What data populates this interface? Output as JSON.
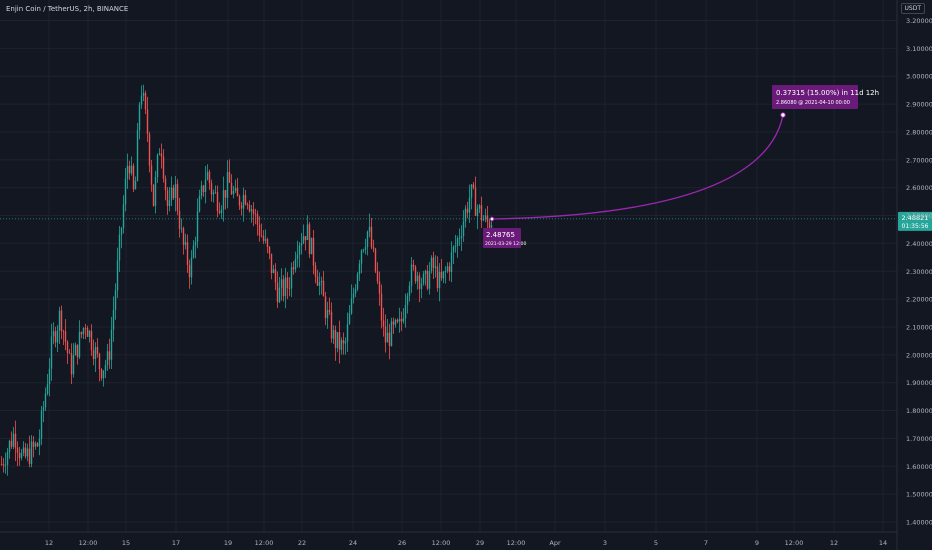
{
  "header": {
    "symbol_title": "Enjin Coin / TetherUS, 2h, BINANCE",
    "currency": "USDT"
  },
  "colors": {
    "background": "#131722",
    "grid": "#1e222d",
    "up": "#26a69a",
    "down": "#ef5350",
    "projection": "#9c27b0",
    "current_line": "#26a69a"
  },
  "chart_data": {
    "type": "candlestick",
    "ylim": [
      1.35,
      3.25
    ],
    "y_ticks": [
      "3.20000",
      "3.10000",
      "3.00000",
      "2.90000",
      "2.80000",
      "2.70000",
      "2.60000",
      "2.50000",
      "2.40000",
      "2.30000",
      "2.20000",
      "2.10000",
      "2.00000",
      "1.90000",
      "1.80000",
      "1.70000",
      "1.60000",
      "1.50000",
      "1.40000"
    ],
    "x_ticks": [
      "12",
      "12:00",
      "15",
      "17",
      "19",
      "12:00",
      "22",
      "24",
      "26",
      "12:00",
      "29",
      "12:00",
      "Apr",
      "3",
      "5",
      "7",
      "9",
      "12:00",
      "12",
      "14"
    ],
    "current_price": {
      "value": 2.48821,
      "label": "2.48821",
      "countdown": "01:35:56"
    },
    "projection": {
      "line1": "0.37315 (15.00%) in 11d 12h",
      "line2": "2.86080 @ 2021-04-10  00:00",
      "start_value": 2.48765,
      "start_label": "2.48765",
      "start_date": "2021-03-29 12:00",
      "end_value": 2.8608
    },
    "price_path": [
      [
        0,
        1.6
      ],
      [
        14,
        1.72
      ],
      [
        22,
        1.62
      ],
      [
        38,
        1.68
      ],
      [
        52,
        2.05
      ],
      [
        60,
        2.15
      ],
      [
        70,
        1.95
      ],
      [
        85,
        2.12
      ],
      [
        100,
        1.95
      ],
      [
        108,
        1.98
      ],
      [
        118,
        2.35
      ],
      [
        128,
        2.72
      ],
      [
        134,
        2.55
      ],
      [
        140,
        2.98
      ],
      [
        147,
        2.8
      ],
      [
        153,
        2.55
      ],
      [
        160,
        2.78
      ],
      [
        168,
        2.5
      ],
      [
        174,
        2.62
      ],
      [
        182,
        2.4
      ],
      [
        190,
        2.3
      ],
      [
        198,
        2.52
      ],
      [
        206,
        2.66
      ],
      [
        212,
        2.58
      ],
      [
        220,
        2.55
      ],
      [
        228,
        2.62
      ],
      [
        236,
        2.55
      ],
      [
        246,
        2.58
      ],
      [
        256,
        2.48
      ],
      [
        266,
        2.38
      ],
      [
        278,
        2.22
      ],
      [
        288,
        2.25
      ],
      [
        296,
        2.4
      ],
      [
        306,
        2.45
      ],
      [
        316,
        2.3
      ],
      [
        326,
        2.15
      ],
      [
        334,
        2.05
      ],
      [
        344,
        2.02
      ],
      [
        352,
        2.2
      ],
      [
        360,
        2.38
      ],
      [
        368,
        2.45
      ],
      [
        376,
        2.28
      ],
      [
        384,
        2.05
      ],
      [
        392,
        2.08
      ],
      [
        400,
        2.1
      ],
      [
        408,
        2.28
      ],
      [
        416,
        2.3
      ],
      [
        424,
        2.25
      ],
      [
        432,
        2.32
      ],
      [
        440,
        2.25
      ],
      [
        448,
        2.32
      ],
      [
        456,
        2.4
      ],
      [
        464,
        2.5
      ],
      [
        470,
        2.58
      ],
      [
        478,
        2.52
      ],
      [
        486,
        2.47
      ],
      [
        492,
        2.49
      ]
    ]
  }
}
